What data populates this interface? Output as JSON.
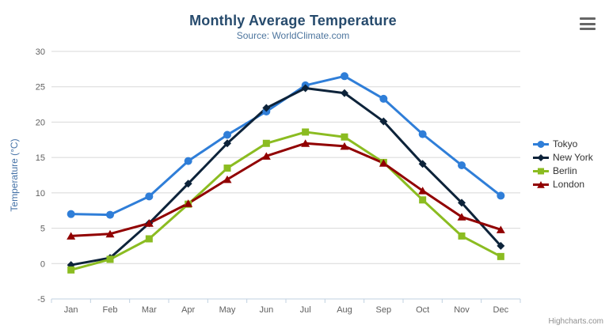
{
  "chart_data": {
    "type": "line",
    "title": "Monthly Average Temperature",
    "subtitle": "Source: WorldClimate.com",
    "categories": [
      "Jan",
      "Feb",
      "Mar",
      "Apr",
      "May",
      "Jun",
      "Jul",
      "Aug",
      "Sep",
      "Oct",
      "Nov",
      "Dec"
    ],
    "series": [
      {
        "name": "Tokyo",
        "color": "#2f7ed8",
        "marker": "circle",
        "values": [
          7.0,
          6.9,
          9.5,
          14.5,
          18.2,
          21.5,
          25.2,
          26.5,
          23.3,
          18.3,
          13.9,
          9.6
        ]
      },
      {
        "name": "New York",
        "color": "#0d233a",
        "marker": "diamond",
        "values": [
          -0.2,
          0.8,
          5.7,
          11.3,
          17.0,
          22.0,
          24.8,
          24.1,
          20.1,
          14.1,
          8.6,
          2.5
        ]
      },
      {
        "name": "Berlin",
        "color": "#8bbc21",
        "marker": "square",
        "values": [
          -0.9,
          0.6,
          3.5,
          8.4,
          13.5,
          17.0,
          18.6,
          17.9,
          14.3,
          9.0,
          3.9,
          1.0
        ]
      },
      {
        "name": "London",
        "color": "#910000",
        "marker": "triangle",
        "values": [
          3.9,
          4.2,
          5.7,
          8.5,
          11.9,
          15.2,
          17.0,
          16.6,
          14.2,
          10.3,
          6.6,
          4.8
        ]
      }
    ],
    "xlabel": "",
    "ylabel": "Temperature (°C)",
    "ylim": [
      -5,
      30
    ],
    "ytick_interval": 5,
    "grid": true,
    "legend_position": "right"
  },
  "credits": "Highcharts.com",
  "colors": {
    "title": "#274b6d",
    "subtitle": "#4d759e",
    "axis_title": "#4572a7",
    "axis_labels": "#606060",
    "gridline": "#d8d8d8",
    "axis_line": "#c0d0e0",
    "legend_text": "#333333",
    "credits_text": "#909090"
  }
}
